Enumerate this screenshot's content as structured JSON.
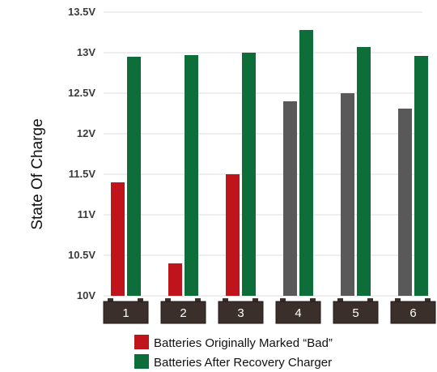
{
  "chart_data": {
    "type": "bar",
    "title": "",
    "xlabel": "",
    "ylabel": "State Of Charge",
    "categories": [
      "1",
      "2",
      "3",
      "4",
      "5",
      "6"
    ],
    "y_ticks": [
      "10V",
      "10.5V",
      "11V",
      "11.5V",
      "12V",
      "12.5V",
      "13V",
      "13.5V"
    ],
    "ylim": [
      10,
      13.5
    ],
    "grid": true,
    "legend_position": "bottom",
    "series": [
      {
        "name": "Batteries Originally Marked “Bad”",
        "values": [
          11.4,
          10.4,
          11.5,
          12.4,
          12.5,
          12.31
        ],
        "bar_colors": [
          "#c0141c",
          "#c0141c",
          "#c0141c",
          "#595959",
          "#595959",
          "#595959"
        ]
      },
      {
        "name": "Batteries After Recovery Charger",
        "values": [
          12.95,
          12.97,
          13.0,
          13.28,
          13.07,
          12.96
        ],
        "bar_colors": [
          "#0e6e3a",
          "#0e6e3a",
          "#0e6e3a",
          "#0e6e3a",
          "#0e6e3a",
          "#0e6e3a"
        ]
      }
    ],
    "legend": [
      {
        "label": "Batteries Originally Marked “Bad”",
        "color": "#c0141c"
      },
      {
        "label": "Batteries After Recovery Charger",
        "color": "#0e6e3a"
      }
    ],
    "colors": {
      "grid": "#dddddd",
      "battery_body": "#3b2f2c",
      "battery_border": "#1f1816"
    }
  }
}
